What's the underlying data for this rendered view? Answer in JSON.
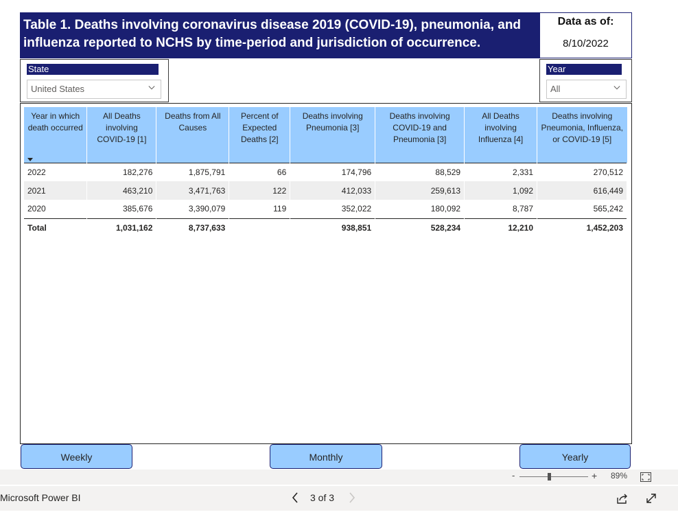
{
  "title": "Table 1. Deaths involving coronavirus disease 2019 (COVID-19), pneumonia, and influenza reported to NCHS by time-period and jurisdiction of occurrence.",
  "data_as_of": {
    "label": "Data as of:",
    "date": "8/10/2022"
  },
  "filters": {
    "state": {
      "label": "State",
      "value": "United States"
    },
    "year": {
      "label": "Year",
      "value": "All"
    }
  },
  "table": {
    "columns": [
      "Year in which death occurred",
      "All Deaths involving COVID-19 [1]",
      "Deaths from All Causes",
      "Percent of Expected Deaths [2]",
      "Deaths involving Pneumonia [3]",
      "Deaths involving COVID-19 and Pneumonia [3]",
      "All Deaths involving Influenza [4]",
      "Deaths involving Pneumonia, Influenza, or COVID-19 [5]"
    ],
    "rows": [
      [
        "2022",
        "182,276",
        "1,875,791",
        "66",
        "174,796",
        "88,529",
        "2,331",
        "270,512"
      ],
      [
        "2021",
        "463,210",
        "3,471,763",
        "122",
        "412,033",
        "259,613",
        "1,092",
        "616,449"
      ],
      [
        "2020",
        "385,676",
        "3,390,079",
        "119",
        "352,022",
        "180,092",
        "8,787",
        "565,242"
      ]
    ],
    "total": [
      "Total",
      "1,031,162",
      "8,737,633",
      "",
      "938,851",
      "528,234",
      "12,210",
      "1,452,203"
    ]
  },
  "nav_buttons": {
    "weekly": "Weekly",
    "monthly": "Monthly",
    "yearly": "Yearly"
  },
  "zoom": {
    "minus": "-",
    "plus": "+",
    "level": "89%"
  },
  "footer": {
    "brand": "Microsoft Power BI",
    "page_indicator": "3 of 3"
  },
  "colors": {
    "banner": "#1a1f71",
    "header_fill": "#99ccff",
    "button_fill": "#99ccff",
    "stripe": "#eeeeee"
  }
}
